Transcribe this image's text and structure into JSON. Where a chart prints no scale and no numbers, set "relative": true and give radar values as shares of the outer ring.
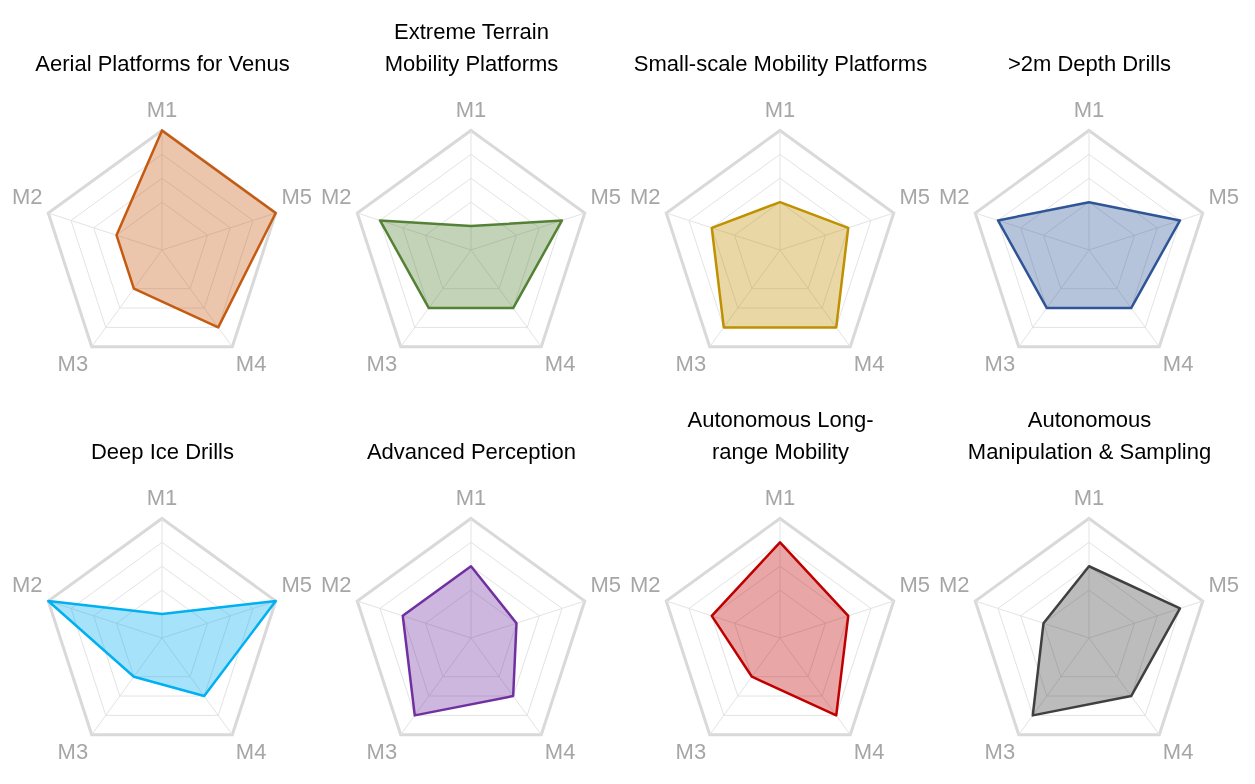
{
  "chart_data": [
    {
      "type": "radar",
      "title": "Aerial Platforms for Venus",
      "categories": [
        "M1",
        "M5",
        "M4",
        "M3",
        "M2"
      ],
      "relative": true,
      "grid": true,
      "marker": "none",
      "series": [
        {
          "color": "#c55a11",
          "values": [
            1,
            1,
            0.8,
            0.4,
            0.4
          ]
        }
      ]
    },
    {
      "type": "radar",
      "title": "Extreme Terrain Mobility Platforms",
      "categories": [
        "M1",
        "M5",
        "M4",
        "M3",
        "M2"
      ],
      "relative": true,
      "grid": true,
      "marker": "none",
      "series": [
        {
          "color": "#548235",
          "values": [
            0.2,
            0.8,
            0.6,
            0.6,
            0.8
          ]
        }
      ]
    },
    {
      "type": "radar",
      "title": "Small-scale Mobility Platforms",
      "categories": [
        "M1",
        "M5",
        "M4",
        "M3",
        "M2"
      ],
      "relative": true,
      "grid": true,
      "marker": "none",
      "series": [
        {
          "color": "#bf9000",
          "values": [
            0.4,
            0.6,
            0.8,
            0.8,
            0.6
          ]
        }
      ]
    },
    {
      "type": "radar",
      "title": ">2m Depth Drills",
      "categories": [
        "M1",
        "M5",
        "M4",
        "M3",
        "M2"
      ],
      "relative": true,
      "grid": true,
      "marker": "none",
      "series": [
        {
          "color": "#2f5597",
          "values": [
            0.4,
            0.8,
            0.6,
            0.6,
            0.8
          ]
        }
      ]
    },
    {
      "type": "radar",
      "title": "Deep Ice Drills",
      "categories": [
        "M1",
        "M5",
        "M4",
        "M3",
        "M2"
      ],
      "relative": true,
      "grid": true,
      "marker": "none",
      "series": [
        {
          "color": "#00b0f0",
          "values": [
            0.2,
            1,
            0.6,
            0.4,
            1
          ]
        }
      ]
    },
    {
      "type": "radar",
      "title": "Advanced Perception",
      "categories": [
        "M1",
        "M5",
        "M4",
        "M3",
        "M2"
      ],
      "relative": true,
      "grid": true,
      "marker": "none",
      "series": [
        {
          "color": "#7030a0",
          "values": [
            0.6,
            0.4,
            0.6,
            0.8,
            0.6
          ]
        }
      ]
    },
    {
      "type": "radar",
      "title": "Autonomous Long-range Mobility",
      "categories": [
        "M1",
        "M5",
        "M4",
        "M3",
        "M2"
      ],
      "relative": true,
      "grid": true,
      "marker": "none",
      "series": [
        {
          "color": "#c00000",
          "values": [
            0.8,
            0.6,
            0.8,
            0.4,
            0.6
          ]
        }
      ]
    },
    {
      "type": "radar",
      "title": "Autonomous Manipulation & Sampling",
      "categories": [
        "M1",
        "M5",
        "M4",
        "M3",
        "M2"
      ],
      "relative": true,
      "grid": true,
      "marker": "none",
      "series": [
        {
          "color": "#404040",
          "values": [
            0.6,
            0.8,
            0.6,
            0.8,
            0.4
          ]
        }
      ]
    }
  ]
}
